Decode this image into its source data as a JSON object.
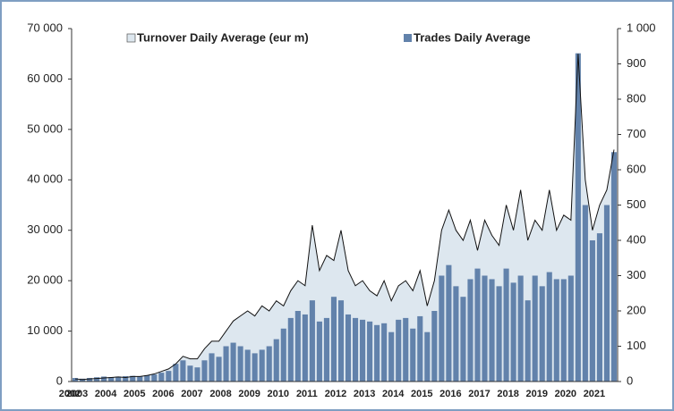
{
  "chart_data": {
    "type": "area-bar",
    "categories": [
      "2002",
      "2003",
      null,
      null,
      null,
      "2004",
      null,
      null,
      null,
      "2005",
      null,
      null,
      null,
      "2006",
      null,
      null,
      null,
      "2007",
      null,
      null,
      null,
      "2008",
      null,
      null,
      null,
      "2009",
      null,
      null,
      null,
      "2010",
      null,
      null,
      null,
      "2011",
      null,
      null,
      null,
      "2012",
      null,
      null,
      null,
      "2013",
      null,
      null,
      null,
      "2014",
      null,
      null,
      null,
      "2015",
      null,
      null,
      null,
      "2016",
      null,
      null,
      null,
      "2017",
      null,
      null,
      null,
      "2018",
      null,
      null,
      null,
      "2019",
      null,
      null,
      null,
      "2020",
      null,
      null,
      null,
      "2021",
      null,
      null
    ],
    "series": [
      {
        "name": "Turnover Daily Average (eur m)",
        "color": "#dde7ef",
        "axis": "y",
        "values": [
          500,
          400,
          500,
          600,
          700,
          800,
          900,
          800,
          1000,
          1000,
          1200,
          1500,
          2000,
          2500,
          3500,
          5000,
          4500,
          4500,
          6500,
          8000,
          8000,
          10000,
          12000,
          13000,
          14000,
          13000,
          15000,
          14000,
          16000,
          15000,
          18000,
          20000,
          19000,
          31000,
          22000,
          25000,
          24000,
          30000,
          22000,
          19000,
          20000,
          18000,
          17000,
          20000,
          16000,
          19000,
          20000,
          18000,
          22000,
          15000,
          20000,
          30000,
          34000,
          30000,
          28000,
          32000,
          26000,
          32000,
          29000,
          27000,
          35000,
          30000,
          38000,
          28000,
          32000,
          30000,
          38000,
          30000,
          33000,
          32000,
          65000,
          40000,
          30000,
          35000,
          38000,
          46000
        ]
      },
      {
        "name": "Trades Daily Average",
        "color": "#6282ab",
        "axis": "y2",
        "values": [
          10,
          8,
          10,
          12,
          14,
          12,
          14,
          15,
          16,
          15,
          18,
          20,
          25,
          30,
          50,
          60,
          45,
          40,
          60,
          80,
          70,
          100,
          110,
          100,
          90,
          80,
          90,
          100,
          120,
          150,
          180,
          200,
          190,
          230,
          170,
          180,
          240,
          230,
          190,
          180,
          175,
          170,
          160,
          165,
          140,
          175,
          180,
          150,
          185,
          140,
          200,
          300,
          330,
          270,
          240,
          290,
          320,
          300,
          290,
          270,
          320,
          280,
          300,
          230,
          300,
          270,
          310,
          290,
          290,
          300,
          930,
          500,
          400,
          420,
          500,
          650
        ]
      }
    ],
    "ylim": [
      0,
      70000
    ],
    "yticks": [
      0,
      {
        "value": 10000,
        "label": "10 000"
      },
      {
        "value": 20000,
        "label": "20 000"
      },
      {
        "value": 30000,
        "label": "30 000"
      },
      {
        "value": 40000,
        "label": "40 000"
      },
      {
        "value": 50000,
        "label": "50 000"
      },
      {
        "value": 60000,
        "label": "60 000"
      },
      {
        "value": 70000,
        "label": "70 000"
      }
    ],
    "y2lim": [
      0,
      1000
    ],
    "y2ticks": [
      0,
      100,
      200,
      300,
      400,
      500,
      600,
      700,
      800,
      900,
      {
        "value": 1000,
        "label": "1 000"
      }
    ],
    "legend": "top"
  }
}
